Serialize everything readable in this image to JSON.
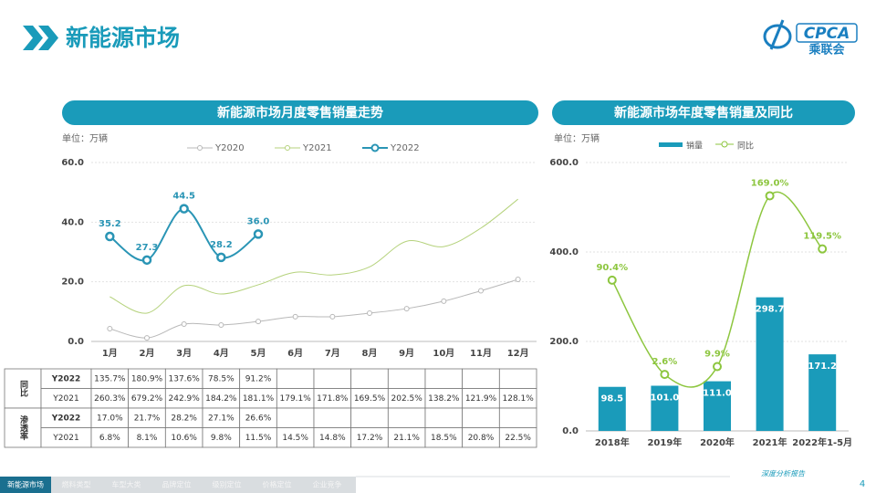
{
  "header": {
    "title": "新能源市场",
    "logo": {
      "name": "CPCA",
      "subname": "乘联会"
    }
  },
  "chart_data": [
    {
      "type": "line",
      "title": "新能源市场月度零售销量走势",
      "unit_label": "单位：万辆",
      "categories": [
        "1月",
        "2月",
        "3月",
        "4月",
        "5月",
        "6月",
        "7月",
        "8月",
        "9月",
        "10月",
        "11月",
        "12月"
      ],
      "series": [
        {
          "name": "Y2020",
          "color": "#b8b8b8",
          "markers": true,
          "values": [
            4.3,
            1.2,
            5.8,
            5.5,
            6.7,
            8.3,
            8.3,
            9.5,
            11.0,
            13.5,
            17.0,
            20.8
          ]
        },
        {
          "name": "Y2021",
          "color": "#b5d27c",
          "markers": false,
          "values": [
            15.0,
            9.5,
            18.7,
            15.9,
            19.0,
            23.2,
            22.3,
            25.0,
            33.6,
            31.8,
            38.0,
            47.7
          ]
        },
        {
          "name": "Y2022",
          "color": "#2a95b5",
          "markers": true,
          "values": [
            35.2,
            27.3,
            44.5,
            28.2,
            36.0,
            null,
            null,
            null,
            null,
            null,
            null,
            null
          ],
          "value_labels": [
            "35.2",
            "27.3",
            "44.5",
            "28.2",
            "36.0",
            null,
            null,
            null,
            null,
            null,
            null,
            null
          ]
        }
      ],
      "ylim": [
        0,
        60
      ],
      "yticks": [
        {
          "value": 0,
          "label": "0.0"
        },
        {
          "value": 20,
          "label": "20.0"
        },
        {
          "value": 40,
          "label": "40.0"
        },
        {
          "value": 60,
          "label": "60.0"
        }
      ],
      "grid": true,
      "legend": "top"
    },
    {
      "type": "combo",
      "title": "新能源市场年度零售销量及同比",
      "unit_label": "单位：万辆",
      "categories": [
        "2018年",
        "2019年",
        "2020年",
        "2021年",
        "2022年1-5月"
      ],
      "series": [
        {
          "name": "销量",
          "type": "bar",
          "color": "#1a9bba",
          "values": [
            98.5,
            101.0,
            111.0,
            298.7,
            171.2
          ],
          "value_labels": [
            "98.5",
            "101.0",
            "111.0",
            "298.7",
            "171.2"
          ]
        },
        {
          "name": "同比",
          "type": "line",
          "axis": "y2",
          "color": "#8dc63f",
          "values": [
            90.4,
            2.6,
            9.9,
            169.0,
            119.5
          ],
          "value_labels": [
            "90.4%",
            "2.6%",
            "9.9%",
            "169.0%",
            "119.5%"
          ]
        }
      ],
      "ylim": [
        0,
        600
      ],
      "yticks": [
        {
          "value": 0,
          "label": "0.0"
        },
        {
          "value": 200,
          "label": "200.0"
        },
        {
          "value": 400,
          "label": "400.0"
        },
        {
          "value": 600,
          "label": "600.0"
        }
      ],
      "y2lim": [
        -50,
        200
      ],
      "grid": true,
      "legend": "top"
    }
  ],
  "table": {
    "groups": [
      {
        "label": "同比",
        "rows": [
          {
            "label": "Y2022",
            "cells": [
              "135.7%",
              "180.9%",
              "137.6%",
              "78.5%",
              "91.2%"
            ]
          },
          {
            "label": "Y2021",
            "cells": [
              "260.3%",
              "679.2%",
              "242.9%",
              "184.2%",
              "181.1%",
              "179.1%",
              "171.8%",
              "169.5%",
              "202.5%",
              "138.2%",
              "121.9%",
              "128.1%"
            ]
          }
        ]
      },
      {
        "label": "渗透率",
        "rows": [
          {
            "label": "Y2022",
            "cells": [
              "17.0%",
              "21.7%",
              "28.2%",
              "27.1%",
              "26.6%"
            ]
          },
          {
            "label": "Y2021",
            "cells": [
              "6.8%",
              "8.1%",
              "10.6%",
              "9.8%",
              "11.5%",
              "14.5%",
              "14.8%",
              "17.2%",
              "21.1%",
              "18.5%",
              "20.8%",
              "22.5%"
            ]
          }
        ]
      }
    ]
  },
  "footer": {
    "tabs": [
      "新能源市场",
      "燃料类型",
      "车型大类",
      "品牌定位",
      "级别定位",
      "价格定位",
      "企业竞争"
    ],
    "report": "深度分析报告",
    "page": "4"
  }
}
